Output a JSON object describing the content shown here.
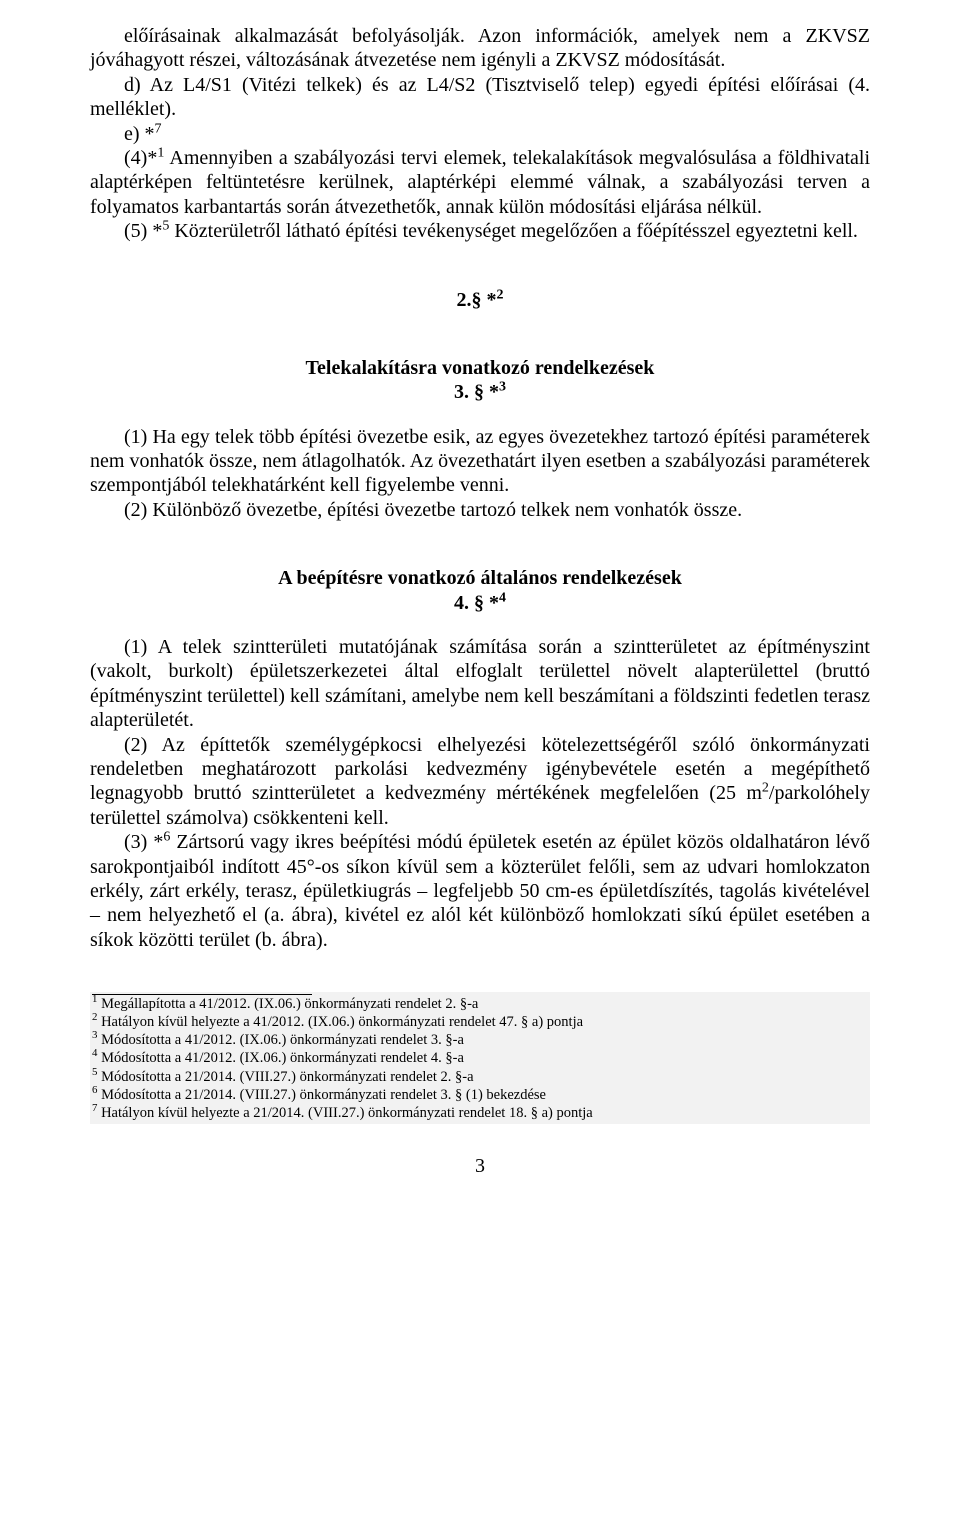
{
  "para1": {
    "line1": "előírásainak alkalmazását befolyásolják. Azon információk, amelyek nem a ZKVSZ jóváhagyott részei, változásának átvezetése nem igényli a ZKVSZ módosítását.",
    "line2a": "d) Az L4/S1 (Vitézi telkek) és az L4/S2 (Tisztviselő telep) egyedi építési előírásai (4. melléklet).",
    "line2b_prefix": "e) *",
    "line2b_sup": "7",
    "line3_prefix": "(4)*",
    "line3_sup": "1",
    "line3_rest": " Amennyiben a szabályozási tervi elemek, telekalakítások megvalósulása a földhivatali alaptérképen feltüntetésre kerülnek, alaptérképi elemmé válnak, a szabályozási terven a folyamatos karbantartás során átvezethetők, annak külön módosítási eljárása nélkül.",
    "line4_prefix": "(5) *",
    "line4_sup": "5",
    "line4_rest": " Közterületről látható építési tevékenységet megelőzően a főépítésszel egyeztetni kell."
  },
  "sec2": {
    "num_prefix": "2.§ *",
    "num_sup": "2"
  },
  "sec3": {
    "title": "Telekalakításra vonatkozó rendelkezések",
    "num_prefix": "3. § *",
    "num_sup": "3",
    "p1": "(1) Ha egy telek több építési övezetbe esik, az egyes övezetekhez tartozó építési paraméterek nem vonhatók össze, nem átlagolhatók. Az övezethatárt ilyen esetben a szabályozási paraméterek szempontjából telekhatárként kell figyelembe venni.",
    "p2": "(2) Különböző övezetbe, építési övezetbe tartozó telkek nem vonhatók össze."
  },
  "sec4": {
    "title": "A beépítésre vonatkozó általános rendelkezések",
    "num_prefix": "4. § *",
    "num_sup": "4",
    "p1_a": "(1) A telek szintterületi mutatójának számítása során a szintterületet az építményszint (vakolt, burkolt) épületszerkezetei által elfoglalt területtel növelt alapterülettel (bruttó építményszint területtel) kell számítani, amelybe nem kell beszámítani a földszinti fedetlen terasz alapterületét.",
    "p2_a": "(2) Az építtetők személygépkocsi elhelyezési kötelezettségéről szóló önkormányzati rendeletben meghatározott parkolási kedvezmény igénybevétele esetén a megépíthető legnagyobb bruttó szintterületet a kedvezmény mértékének megfelelően (25 m",
    "p2_sup": "2",
    "p2_b": "/parkolóhely területtel számolva) csökkenteni kell.",
    "p3_prefix": "(3) *",
    "p3_sup": "6",
    "p3_rest": "  Zártsorú vagy ikres beépítési módú épületek esetén az épület közös oldalhatáron lévő sarokpontjaiból indított 45°-os síkon kívül sem a közterület felőli, sem az udvari homlokzaton erkély, zárt erkély, terasz, épületkiugrás – legfeljebb 50 cm-es épületdíszítés, tagolás kivételével – nem helyezhető el (a. ábra), kivétel ez alól két különböző homlokzati síkú épület esetében a síkok közötti terület (b. ábra)."
  },
  "footnotes": {
    "f1": " Megállapította a 41/2012. (IX.06.) önkormányzati rendelet 2. §-a",
    "f2": " Hatályon kívül helyezte a 41/2012. (IX.06.) önkormányzati rendelet 47. § a) pontja",
    "f3": " Módosította a 41/2012. (IX.06.) önkormányzati rendelet 3. §-a",
    "f4": " Módosította a 41/2012. (IX.06.) önkormányzati rendelet 4. §-a",
    "f5": " Módosította a 21/2014. (VIII.27.) önkormányzati rendelet 2. §-a",
    "f6": " Módosította a 21/2014. (VIII.27.) önkormányzati rendelet 3. § (1) bekezdése",
    "f7": " Hatályon kívül helyezte a 21/2014. (VIII.27.) önkormányzati rendelet 18. § a) pontja"
  },
  "pageNumber": "3"
}
